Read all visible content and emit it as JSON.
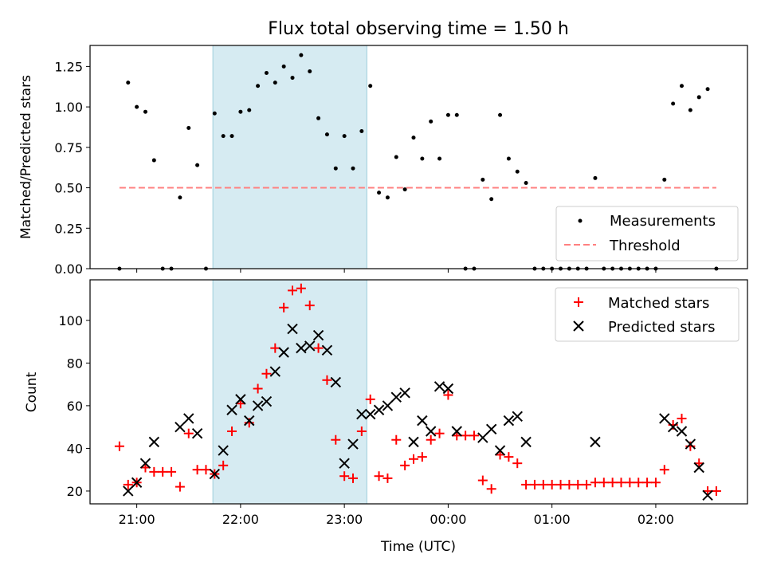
{
  "chart_data": {
    "type": "scatter",
    "title": "Flux total observing time = 1.50 h",
    "shaded_window": {
      "start": "21:44",
      "end": "23:13",
      "color": "#add8e6"
    },
    "x_ticks": [
      "21:00",
      "22:00",
      "23:00",
      "00:00",
      "01:00",
      "02:00"
    ],
    "xlabel": "Time (UTC)",
    "xlim": [
      "20:33",
      "02:53"
    ],
    "panels": [
      {
        "ylabel": "Matched/Predicted stars",
        "ylim": [
          0,
          1.38
        ],
        "y_ticks": [
          "0.00",
          "0.25",
          "0.50",
          "0.75",
          "1.00",
          "1.25"
        ],
        "series": [
          {
            "name": "Measurements",
            "style": "dot",
            "color": "#000000",
            "points": [
              [
                "20:50",
                0.0
              ],
              [
                "20:55",
                1.15
              ],
              [
                "21:00",
                1.0
              ],
              [
                "21:05",
                0.97
              ],
              [
                "21:10",
                0.67
              ],
              [
                "21:15",
                0.0
              ],
              [
                "21:20",
                0.0
              ],
              [
                "21:25",
                0.44
              ],
              [
                "21:30",
                0.87
              ],
              [
                "21:35",
                0.64
              ],
              [
                "21:40",
                0.0
              ],
              [
                "21:45",
                0.96
              ],
              [
                "21:50",
                0.82
              ],
              [
                "21:55",
                0.82
              ],
              [
                "22:00",
                0.97
              ],
              [
                "22:05",
                0.98
              ],
              [
                "22:10",
                1.13
              ],
              [
                "22:15",
                1.21
              ],
              [
                "22:20",
                1.15
              ],
              [
                "22:25",
                1.25
              ],
              [
                "22:30",
                1.18
              ],
              [
                "22:35",
                1.32
              ],
              [
                "22:40",
                1.22
              ],
              [
                "22:45",
                0.93
              ],
              [
                "22:50",
                0.83
              ],
              [
                "22:55",
                0.62
              ],
              [
                "23:00",
                0.82
              ],
              [
                "23:05",
                0.62
              ],
              [
                "23:10",
                0.85
              ],
              [
                "23:15",
                1.13
              ],
              [
                "23:20",
                0.47
              ],
              [
                "23:25",
                0.44
              ],
              [
                "23:30",
                0.69
              ],
              [
                "23:35",
                0.49
              ],
              [
                "23:40",
                0.81
              ],
              [
                "23:45",
                0.68
              ],
              [
                "23:50",
                0.91
              ],
              [
                "23:55",
                0.68
              ],
              [
                "00:00",
                0.95
              ],
              [
                "00:05",
                0.95
              ],
              [
                "00:10",
                0.0
              ],
              [
                "00:15",
                0.0
              ],
              [
                "00:20",
                0.55
              ],
              [
                "00:25",
                0.43
              ],
              [
                "00:30",
                0.95
              ],
              [
                "00:35",
                0.68
              ],
              [
                "00:40",
                0.6
              ],
              [
                "00:45",
                0.53
              ],
              [
                "00:50",
                0.0
              ],
              [
                "00:55",
                0.0
              ],
              [
                "01:00",
                0.0
              ],
              [
                "01:05",
                0.0
              ],
              [
                "01:10",
                0.0
              ],
              [
                "01:15",
                0.0
              ],
              [
                "01:20",
                0.0
              ],
              [
                "01:25",
                0.56
              ],
              [
                "01:30",
                0.0
              ],
              [
                "01:35",
                0.0
              ],
              [
                "01:40",
                0.0
              ],
              [
                "01:45",
                0.0
              ],
              [
                "01:50",
                0.0
              ],
              [
                "01:55",
                0.0
              ],
              [
                "02:00",
                0.0
              ],
              [
                "02:05",
                0.55
              ],
              [
                "02:10",
                1.02
              ],
              [
                "02:15",
                1.13
              ],
              [
                "02:20",
                0.98
              ],
              [
                "02:25",
                1.06
              ],
              [
                "02:30",
                1.11
              ],
              [
                "02:35",
                0.0
              ]
            ]
          },
          {
            "name": "Threshold",
            "style": "dashed-line",
            "color": "#ff8080",
            "points": [
              [
                "20:50",
                0.5
              ],
              [
                "02:35",
                0.5
              ]
            ]
          }
        ],
        "legend_position": "lower right"
      },
      {
        "ylabel": "Count",
        "ylim": [
          14,
          119
        ],
        "y_ticks": [
          "20",
          "40",
          "60",
          "80",
          "100"
        ],
        "series": [
          {
            "name": "Matched stars",
            "style": "plus",
            "color": "#ff0000",
            "points": [
              [
                "20:50",
                41
              ],
              [
                "20:55",
                23
              ],
              [
                "21:00",
                24
              ],
              [
                "21:05",
                31
              ],
              [
                "21:10",
                29
              ],
              [
                "21:15",
                29
              ],
              [
                "21:20",
                29
              ],
              [
                "21:25",
                22
              ],
              [
                "21:30",
                47
              ],
              [
                "21:35",
                30
              ],
              [
                "21:40",
                30
              ],
              [
                "21:45",
                28
              ],
              [
                "21:50",
                32
              ],
              [
                "21:55",
                48
              ],
              [
                "22:00",
                61
              ],
              [
                "22:05",
                52
              ],
              [
                "22:10",
                68
              ],
              [
                "22:15",
                75
              ],
              [
                "22:20",
                87
              ],
              [
                "22:25",
                106
              ],
              [
                "22:30",
                114
              ],
              [
                "22:35",
                115
              ],
              [
                "22:40",
                107
              ],
              [
                "22:45",
                87
              ],
              [
                "22:50",
                72
              ],
              [
                "22:55",
                44
              ],
              [
                "23:00",
                27
              ],
              [
                "23:05",
                26
              ],
              [
                "23:10",
                48
              ],
              [
                "23:15",
                63
              ],
              [
                "23:20",
                27
              ],
              [
                "23:25",
                26
              ],
              [
                "23:30",
                44
              ],
              [
                "23:35",
                32
              ],
              [
                "23:40",
                35
              ],
              [
                "23:45",
                36
              ],
              [
                "23:50",
                44
              ],
              [
                "23:55",
                47
              ],
              [
                "00:00",
                65
              ],
              [
                "00:05",
                46
              ],
              [
                "00:10",
                46
              ],
              [
                "00:15",
                46
              ],
              [
                "00:20",
                25
              ],
              [
                "00:25",
                21
              ],
              [
                "00:30",
                37
              ],
              [
                "00:35",
                36
              ],
              [
                "00:40",
                33
              ],
              [
                "00:45",
                23
              ],
              [
                "00:50",
                23
              ],
              [
                "00:55",
                23
              ],
              [
                "01:00",
                23
              ],
              [
                "01:05",
                23
              ],
              [
                "01:10",
                23
              ],
              [
                "01:15",
                23
              ],
              [
                "01:20",
                23
              ],
              [
                "01:25",
                24
              ],
              [
                "01:30",
                24
              ],
              [
                "01:35",
                24
              ],
              [
                "01:40",
                24
              ],
              [
                "01:45",
                24
              ],
              [
                "01:50",
                24
              ],
              [
                "01:55",
                24
              ],
              [
                "02:00",
                24
              ],
              [
                "02:05",
                30
              ],
              [
                "02:10",
                51
              ],
              [
                "02:15",
                54
              ],
              [
                "02:20",
                41
              ],
              [
                "02:25",
                33
              ],
              [
                "02:30",
                20
              ],
              [
                "02:35",
                20
              ]
            ]
          },
          {
            "name": "Predicted stars",
            "style": "x",
            "color": "#000000",
            "points": [
              [
                "20:55",
                20
              ],
              [
                "21:00",
                24
              ],
              [
                "21:05",
                33
              ],
              [
                "21:10",
                43
              ],
              [
                "21:25",
                50
              ],
              [
                "21:30",
                54
              ],
              [
                "21:35",
                47
              ],
              [
                "21:45",
                28
              ],
              [
                "21:50",
                39
              ],
              [
                "21:55",
                58
              ],
              [
                "22:00",
                63
              ],
              [
                "22:05",
                53
              ],
              [
                "22:10",
                60
              ],
              [
                "22:15",
                62
              ],
              [
                "22:20",
                76
              ],
              [
                "22:25",
                85
              ],
              [
                "22:30",
                96
              ],
              [
                "22:35",
                87
              ],
              [
                "22:40",
                88
              ],
              [
                "22:45",
                93
              ],
              [
                "22:50",
                86
              ],
              [
                "22:55",
                71
              ],
              [
                "23:00",
                33
              ],
              [
                "23:05",
                42
              ],
              [
                "23:10",
                56
              ],
              [
                "23:15",
                56
              ],
              [
                "23:20",
                58
              ],
              [
                "23:25",
                60
              ],
              [
                "23:30",
                64
              ],
              [
                "23:35",
                66
              ],
              [
                "23:40",
                43
              ],
              [
                "23:45",
                53
              ],
              [
                "23:50",
                48
              ],
              [
                "23:55",
                69
              ],
              [
                "00:00",
                68
              ],
              [
                "00:05",
                48
              ],
              [
                "00:20",
                45
              ],
              [
                "00:25",
                49
              ],
              [
                "00:30",
                39
              ],
              [
                "00:35",
                53
              ],
              [
                "00:40",
                55
              ],
              [
                "00:45",
                43
              ],
              [
                "01:25",
                43
              ],
              [
                "02:05",
                54
              ],
              [
                "02:10",
                50
              ],
              [
                "02:15",
                48
              ],
              [
                "02:20",
                42
              ],
              [
                "02:25",
                31
              ],
              [
                "02:30",
                18
              ]
            ]
          }
        ],
        "legend_position": "upper right"
      }
    ]
  }
}
